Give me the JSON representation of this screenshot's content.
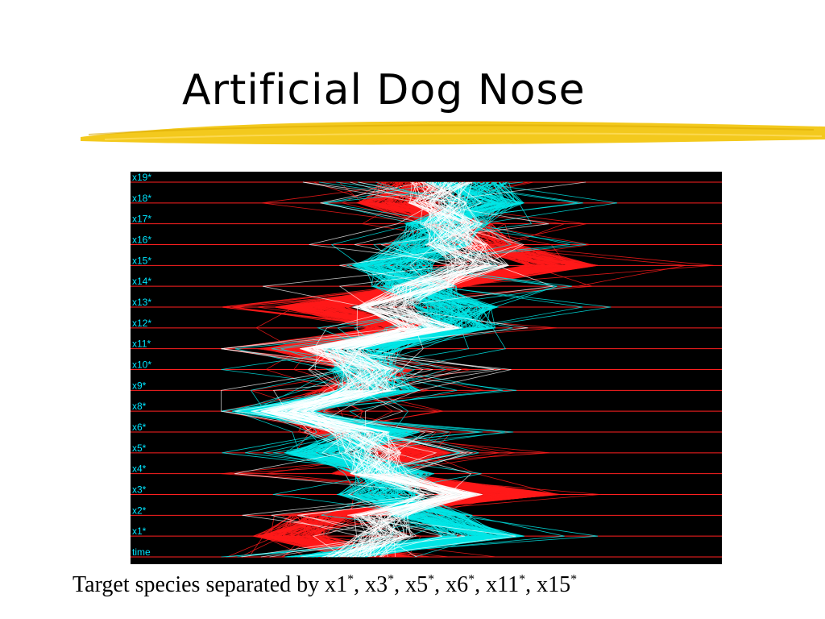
{
  "slide": {
    "title": "Artificial Dog Nose",
    "caption": {
      "prefix": "Target species separated by ",
      "vars": [
        "x1",
        "x3",
        "x5",
        "x6",
        "x11",
        "x15"
      ],
      "mark": "*"
    }
  },
  "colors": {
    "accent_highlighter": "#f2c40a",
    "plot_bg": "#000000",
    "axis_line": "#ff2020",
    "axis_label": "#00e5ff",
    "class_a": "#ff1a1a",
    "class_b": "#00e6e6",
    "overlap": "#ffffff"
  },
  "chart_data": {
    "type": "line",
    "subtype": "parallel-coordinates (horizontal axes)",
    "axes": [
      "x19*",
      "x18*",
      "x17*",
      "x16*",
      "x15*",
      "x14*",
      "x13*",
      "x12*",
      "x11*",
      "x10*",
      "x9*",
      "x8*",
      "x6*",
      "x5*",
      "x4*",
      "x3*",
      "x2*",
      "x1*",
      "time"
    ],
    "xlim": [
      0,
      1
    ],
    "series": [
      {
        "color_key": "class_a",
        "profile": [
          0.42,
          0.38,
          0.5,
          0.55,
          0.7,
          0.45,
          0.22,
          0.4,
          0.2,
          0.35,
          0.3,
          0.18,
          0.28,
          0.42,
          0.33,
          0.63,
          0.25,
          0.18,
          0.35
        ]
      },
      {
        "color_key": "class_b",
        "profile": [
          0.52,
          0.55,
          0.48,
          0.45,
          0.38,
          0.42,
          0.5,
          0.5,
          0.32,
          0.32,
          0.35,
          0.15,
          0.35,
          0.25,
          0.38,
          0.35,
          0.45,
          0.55,
          0.25
        ]
      }
    ],
    "grid": true,
    "legend": "none"
  }
}
